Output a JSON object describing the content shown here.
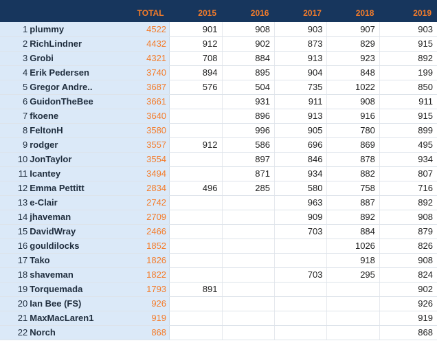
{
  "headers": {
    "rank": "",
    "name": "",
    "total": "TOTAL",
    "years": [
      "2015",
      "2016",
      "2017",
      "2018",
      "2019"
    ]
  },
  "colors": {
    "header_bg": "#17365d",
    "header_text": "#f47c2a",
    "total_text": "#f47c2a",
    "name_bg": "#dbe9f8"
  },
  "rows": [
    {
      "rank": "1",
      "name": "plummy",
      "total": "4522",
      "years": [
        "901",
        "908",
        "903",
        "907",
        "903"
      ]
    },
    {
      "rank": "2",
      "name": "RichLindner",
      "total": "4432",
      "years": [
        "912",
        "902",
        "873",
        "829",
        "915"
      ]
    },
    {
      "rank": "3",
      "name": "Grobi",
      "total": "4321",
      "years": [
        "708",
        "884",
        "913",
        "923",
        "892"
      ]
    },
    {
      "rank": "4",
      "name": "Erik Pedersen",
      "total": "3740",
      "years": [
        "894",
        "895",
        "904",
        "848",
        "199"
      ]
    },
    {
      "rank": "5",
      "name": "Gregor Andre..",
      "total": "3687",
      "years": [
        "576",
        "504",
        "735",
        "1022",
        "850"
      ]
    },
    {
      "rank": "6",
      "name": "GuidonTheBee",
      "total": "3661",
      "years": [
        "",
        "931",
        "911",
        "908",
        "911"
      ]
    },
    {
      "rank": "7",
      "name": "fkoene",
      "total": "3640",
      "years": [
        "",
        "896",
        "913",
        "916",
        "915"
      ]
    },
    {
      "rank": "8",
      "name": "FeltonH",
      "total": "3580",
      "years": [
        "",
        "996",
        "905",
        "780",
        "899"
      ]
    },
    {
      "rank": "9",
      "name": "rodger",
      "total": "3557",
      "years": [
        "912",
        "586",
        "696",
        "869",
        "495"
      ]
    },
    {
      "rank": "10",
      "name": "JonTaylor",
      "total": "3554",
      "years": [
        "",
        "897",
        "846",
        "878",
        "934"
      ]
    },
    {
      "rank": "11",
      "name": "Icantey",
      "total": "3494",
      "years": [
        "",
        "871",
        "934",
        "882",
        "807"
      ]
    },
    {
      "rank": "12",
      "name": "Emma Pettitt",
      "total": "2834",
      "years": [
        "496",
        "285",
        "580",
        "758",
        "716"
      ]
    },
    {
      "rank": "13",
      "name": "e-Clair",
      "total": "2742",
      "years": [
        "",
        "",
        "963",
        "887",
        "892"
      ]
    },
    {
      "rank": "14",
      "name": "jhaveman",
      "total": "2709",
      "years": [
        "",
        "",
        "909",
        "892",
        "908"
      ]
    },
    {
      "rank": "15",
      "name": "DavidWray",
      "total": "2466",
      "years": [
        "",
        "",
        "703",
        "884",
        "879"
      ]
    },
    {
      "rank": "16",
      "name": "gouldilocks",
      "total": "1852",
      "years": [
        "",
        "",
        "",
        "1026",
        "826"
      ]
    },
    {
      "rank": "17",
      "name": "Tako",
      "total": "1826",
      "years": [
        "",
        "",
        "",
        "918",
        "908"
      ]
    },
    {
      "rank": "18",
      "name": "shaveman",
      "total": "1822",
      "years": [
        "",
        "",
        "703",
        "295",
        "824"
      ]
    },
    {
      "rank": "19",
      "name": "Torquemada",
      "total": "1793",
      "years": [
        "891",
        "",
        "",
        "",
        "902"
      ]
    },
    {
      "rank": "20",
      "name": "Ian Bee (FS)",
      "total": "926",
      "years": [
        "",
        "",
        "",
        "",
        "926"
      ]
    },
    {
      "rank": "21",
      "name": "MaxMacLaren1",
      "total": "919",
      "years": [
        "",
        "",
        "",
        "",
        "919"
      ]
    },
    {
      "rank": "22",
      "name": "Norch",
      "total": "868",
      "years": [
        "",
        "",
        "",
        "",
        "868"
      ]
    }
  ]
}
